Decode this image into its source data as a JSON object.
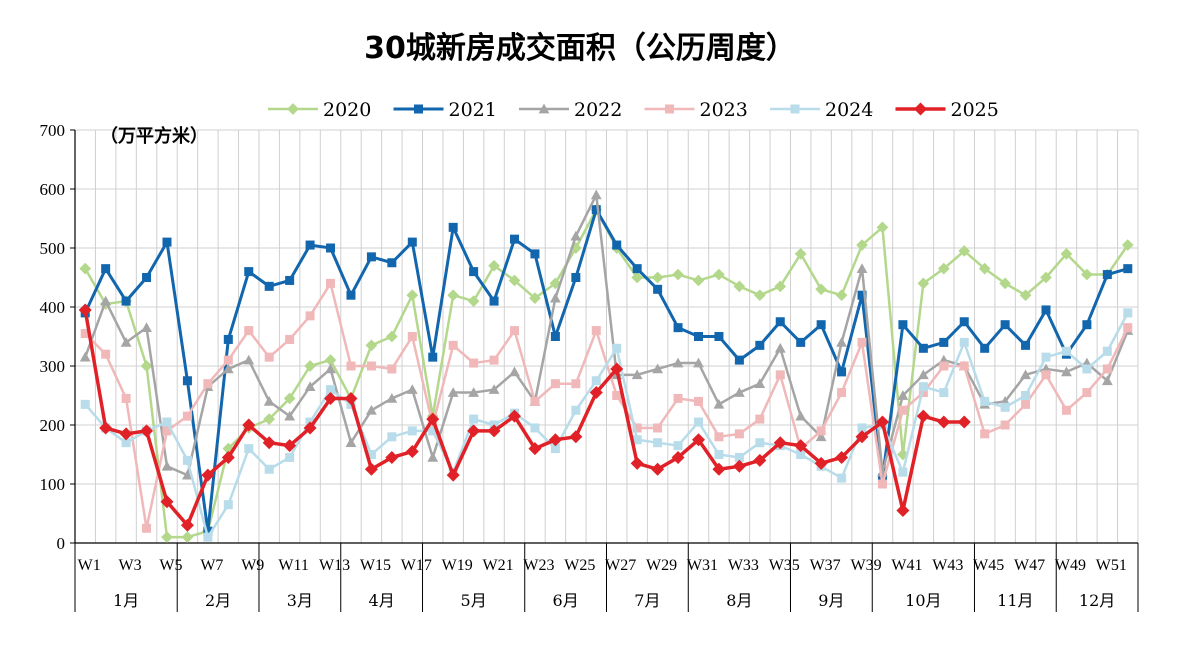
{
  "chart_data": {
    "type": "line",
    "title": "30城新房成交面积（公历周度）",
    "unit_label": "（万平方米）",
    "ylim": [
      0,
      700
    ],
    "yticks": [
      0,
      100,
      200,
      300,
      400,
      500,
      600,
      700
    ],
    "grid": true,
    "legend_position": "top",
    "x": [
      "W1",
      "W2",
      "W3",
      "W4",
      "W5",
      "W6",
      "W7",
      "W8",
      "W9",
      "W10",
      "W11",
      "W12",
      "W13",
      "W14",
      "W15",
      "W16",
      "W17",
      "W18",
      "W19",
      "W20",
      "W21",
      "W22",
      "W23",
      "W24",
      "W25",
      "W26",
      "W27",
      "W28",
      "W29",
      "W30",
      "W31",
      "W32",
      "W33",
      "W34",
      "W35",
      "W36",
      "W37",
      "W38",
      "W39",
      "W40",
      "W41",
      "W42",
      "W43",
      "W44",
      "W45",
      "W46",
      "W47",
      "W48",
      "W49",
      "W50",
      "W51",
      "W52"
    ],
    "x_tick_labels": [
      "W1",
      "",
      "W3",
      "",
      "W5",
      "",
      "W7",
      "",
      "W9",
      "",
      "W11",
      "",
      "W13",
      "",
      "W15",
      "",
      "W17",
      "",
      "W19",
      "",
      "W21",
      "",
      "W23",
      "",
      "W25",
      "",
      "W27",
      "",
      "W29",
      "",
      "W31",
      "",
      "W33",
      "",
      "W35",
      "",
      "W37",
      "",
      "W39",
      "",
      "W41",
      "",
      "W43",
      "",
      "W45",
      "",
      "W47",
      "",
      "W49",
      "",
      "W51",
      ""
    ],
    "months": [
      {
        "label": "1月",
        "start": 0,
        "end": 5
      },
      {
        "label": "2月",
        "start": 5,
        "end": 9
      },
      {
        "label": "3月",
        "start": 9,
        "end": 13
      },
      {
        "label": "4月",
        "start": 13,
        "end": 17
      },
      {
        "label": "5月",
        "start": 17,
        "end": 22
      },
      {
        "label": "6月",
        "start": 22,
        "end": 26
      },
      {
        "label": "7月",
        "start": 26,
        "end": 30
      },
      {
        "label": "8月",
        "start": 30,
        "end": 35
      },
      {
        "label": "9月",
        "start": 35,
        "end": 39
      },
      {
        "label": "10月",
        "start": 39,
        "end": 44
      },
      {
        "label": "11月",
        "start": 44,
        "end": 48
      },
      {
        "label": "12月",
        "start": 48,
        "end": 52
      }
    ],
    "series": [
      {
        "name": "2020",
        "color": "#b3d88c",
        "marker": "diamond",
        "width": 2.5,
        "values": [
          465,
          405,
          410,
          300,
          10,
          10,
          20,
          160,
          195,
          210,
          245,
          300,
          310,
          245,
          335,
          350,
          420,
          215,
          420,
          410,
          470,
          445,
          415,
          440,
          500,
          565,
          500,
          450,
          450,
          455,
          445,
          455,
          435,
          420,
          435,
          490,
          430,
          420,
          505,
          535,
          150,
          440,
          465,
          495,
          465,
          440,
          420,
          450,
          490,
          455,
          455,
          505
        ]
      },
      {
        "name": "2021",
        "color": "#1266ad",
        "marker": "square",
        "width": 3,
        "values": [
          390,
          465,
          410,
          450,
          510,
          275,
          20,
          345,
          460,
          435,
          445,
          505,
          500,
          420,
          485,
          475,
          510,
          315,
          535,
          460,
          410,
          515,
          490,
          350,
          450,
          565,
          505,
          465,
          430,
          365,
          350,
          350,
          310,
          335,
          375,
          340,
          370,
          290,
          420,
          110,
          370,
          330,
          340,
          375,
          330,
          370,
          335,
          395,
          320,
          370,
          455,
          465
        ]
      },
      {
        "name": "2022",
        "color": "#a5a5a5",
        "marker": "triangle",
        "width": 2.5,
        "values": [
          315,
          410,
          340,
          365,
          130,
          115,
          265,
          295,
          310,
          240,
          215,
          265,
          295,
          170,
          225,
          245,
          260,
          145,
          255,
          255,
          260,
          290,
          240,
          415,
          520,
          590,
          285,
          285,
          295,
          305,
          305,
          235,
          255,
          270,
          330,
          215,
          180,
          340,
          465,
          120,
          250,
          285,
          310,
          300,
          235,
          240,
          285,
          295,
          290,
          305,
          275,
          360
        ]
      },
      {
        "name": "2023",
        "color": "#f0b8b8",
        "marker": "square",
        "width": 2.5,
        "values": [
          355,
          320,
          245,
          25,
          190,
          215,
          270,
          310,
          360,
          315,
          345,
          385,
          440,
          300,
          300,
          295,
          350,
          200,
          335,
          305,
          310,
          360,
          240,
          270,
          270,
          360,
          250,
          195,
          195,
          245,
          240,
          180,
          185,
          210,
          285,
          160,
          190,
          255,
          340,
          100,
          225,
          255,
          300,
          300,
          185,
          200,
          235,
          285,
          225,
          255,
          295,
          365
        ]
      },
      {
        "name": "2024",
        "color": "#b8dcea",
        "marker": "square",
        "width": 2.5,
        "values": [
          235,
          195,
          170,
          190,
          205,
          140,
          10,
          65,
          160,
          125,
          145,
          205,
          260,
          235,
          150,
          180,
          190,
          190,
          120,
          210,
          200,
          220,
          195,
          160,
          225,
          275,
          330,
          175,
          170,
          165,
          205,
          150,
          145,
          170,
          165,
          150,
          130,
          110,
          195,
          200,
          120,
          265,
          255,
          340,
          240,
          230,
          250,
          315,
          325,
          295,
          325,
          390
        ]
      },
      {
        "name": "2025",
        "color": "#e02127",
        "marker": "diamond",
        "width": 3.5,
        "values": [
          395,
          195,
          185,
          190,
          70,
          30,
          115,
          145,
          200,
          170,
          165,
          195,
          245,
          245,
          125,
          145,
          155,
          210,
          115,
          190,
          190,
          215,
          160,
          175,
          180,
          255,
          295,
          135,
          125,
          145,
          175,
          125,
          130,
          140,
          170,
          165,
          135,
          145,
          180,
          205,
          55,
          215,
          205,
          205,
          null,
          null,
          null,
          null,
          null,
          null,
          null,
          null
        ]
      }
    ]
  }
}
